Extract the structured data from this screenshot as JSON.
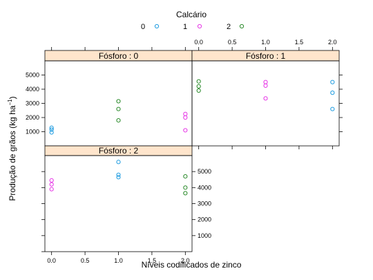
{
  "chart_data": {
    "type": "scatter",
    "legend_title": "Calcário",
    "legend": [
      {
        "label": "0",
        "color": "#1f9ce0"
      },
      {
        "label": "1",
        "color": "#e636e6"
      },
      {
        "label": "2",
        "color": "#2a8a2a"
      }
    ],
    "xlabel": "Níveis codificados de zinco",
    "ylabel": "Produção de grãos (kg ha",
    "ylabel_sup": "−1",
    "ylabel_end": ")",
    "xlim": [
      -0.1,
      2.1
    ],
    "ylim": [
      0,
      6000
    ],
    "x_ticks": [
      "0.0",
      "0.5",
      "1.0",
      "1.5",
      "2.0"
    ],
    "y_ticks": [
      "1000",
      "2000",
      "3000",
      "4000",
      "5000"
    ],
    "panels": [
      {
        "strip": "Fósforo : 0",
        "points": [
          {
            "group": 0,
            "x": 0,
            "y": 950
          },
          {
            "group": 0,
            "x": 0,
            "y": 1150
          },
          {
            "group": 0,
            "x": 0,
            "y": 1280
          },
          {
            "group": 2,
            "x": 1,
            "y": 1800
          },
          {
            "group": 2,
            "x": 1,
            "y": 2600
          },
          {
            "group": 2,
            "x": 1,
            "y": 3150
          },
          {
            "group": 1,
            "x": 2,
            "y": 1100
          },
          {
            "group": 1,
            "x": 2,
            "y": 2000
          },
          {
            "group": 1,
            "x": 2,
            "y": 2250
          }
        ]
      },
      {
        "strip": "Fósforo : 1",
        "points": [
          {
            "group": 2,
            "x": 0,
            "y": 3900
          },
          {
            "group": 2,
            "x": 0,
            "y": 4200
          },
          {
            "group": 2,
            "x": 0,
            "y": 4550
          },
          {
            "group": 1,
            "x": 1,
            "y": 3350
          },
          {
            "group": 1,
            "x": 1,
            "y": 4250
          },
          {
            "group": 1,
            "x": 1,
            "y": 4500
          },
          {
            "group": 0,
            "x": 2,
            "y": 2600
          },
          {
            "group": 0,
            "x": 2,
            "y": 3750
          },
          {
            "group": 0,
            "x": 2,
            "y": 4500
          }
        ]
      },
      {
        "strip": "Fósforo : 2",
        "points": [
          {
            "group": 1,
            "x": 0,
            "y": 3900
          },
          {
            "group": 1,
            "x": 0,
            "y": 4200
          },
          {
            "group": 1,
            "x": 0,
            "y": 4450
          },
          {
            "group": 0,
            "x": 1,
            "y": 4650
          },
          {
            "group": 0,
            "x": 1,
            "y": 4800
          },
          {
            "group": 0,
            "x": 1,
            "y": 5600
          },
          {
            "group": 2,
            "x": 2,
            "y": 3650
          },
          {
            "group": 2,
            "x": 2,
            "y": 4000
          },
          {
            "group": 2,
            "x": 2,
            "y": 4700
          }
        ]
      }
    ]
  }
}
